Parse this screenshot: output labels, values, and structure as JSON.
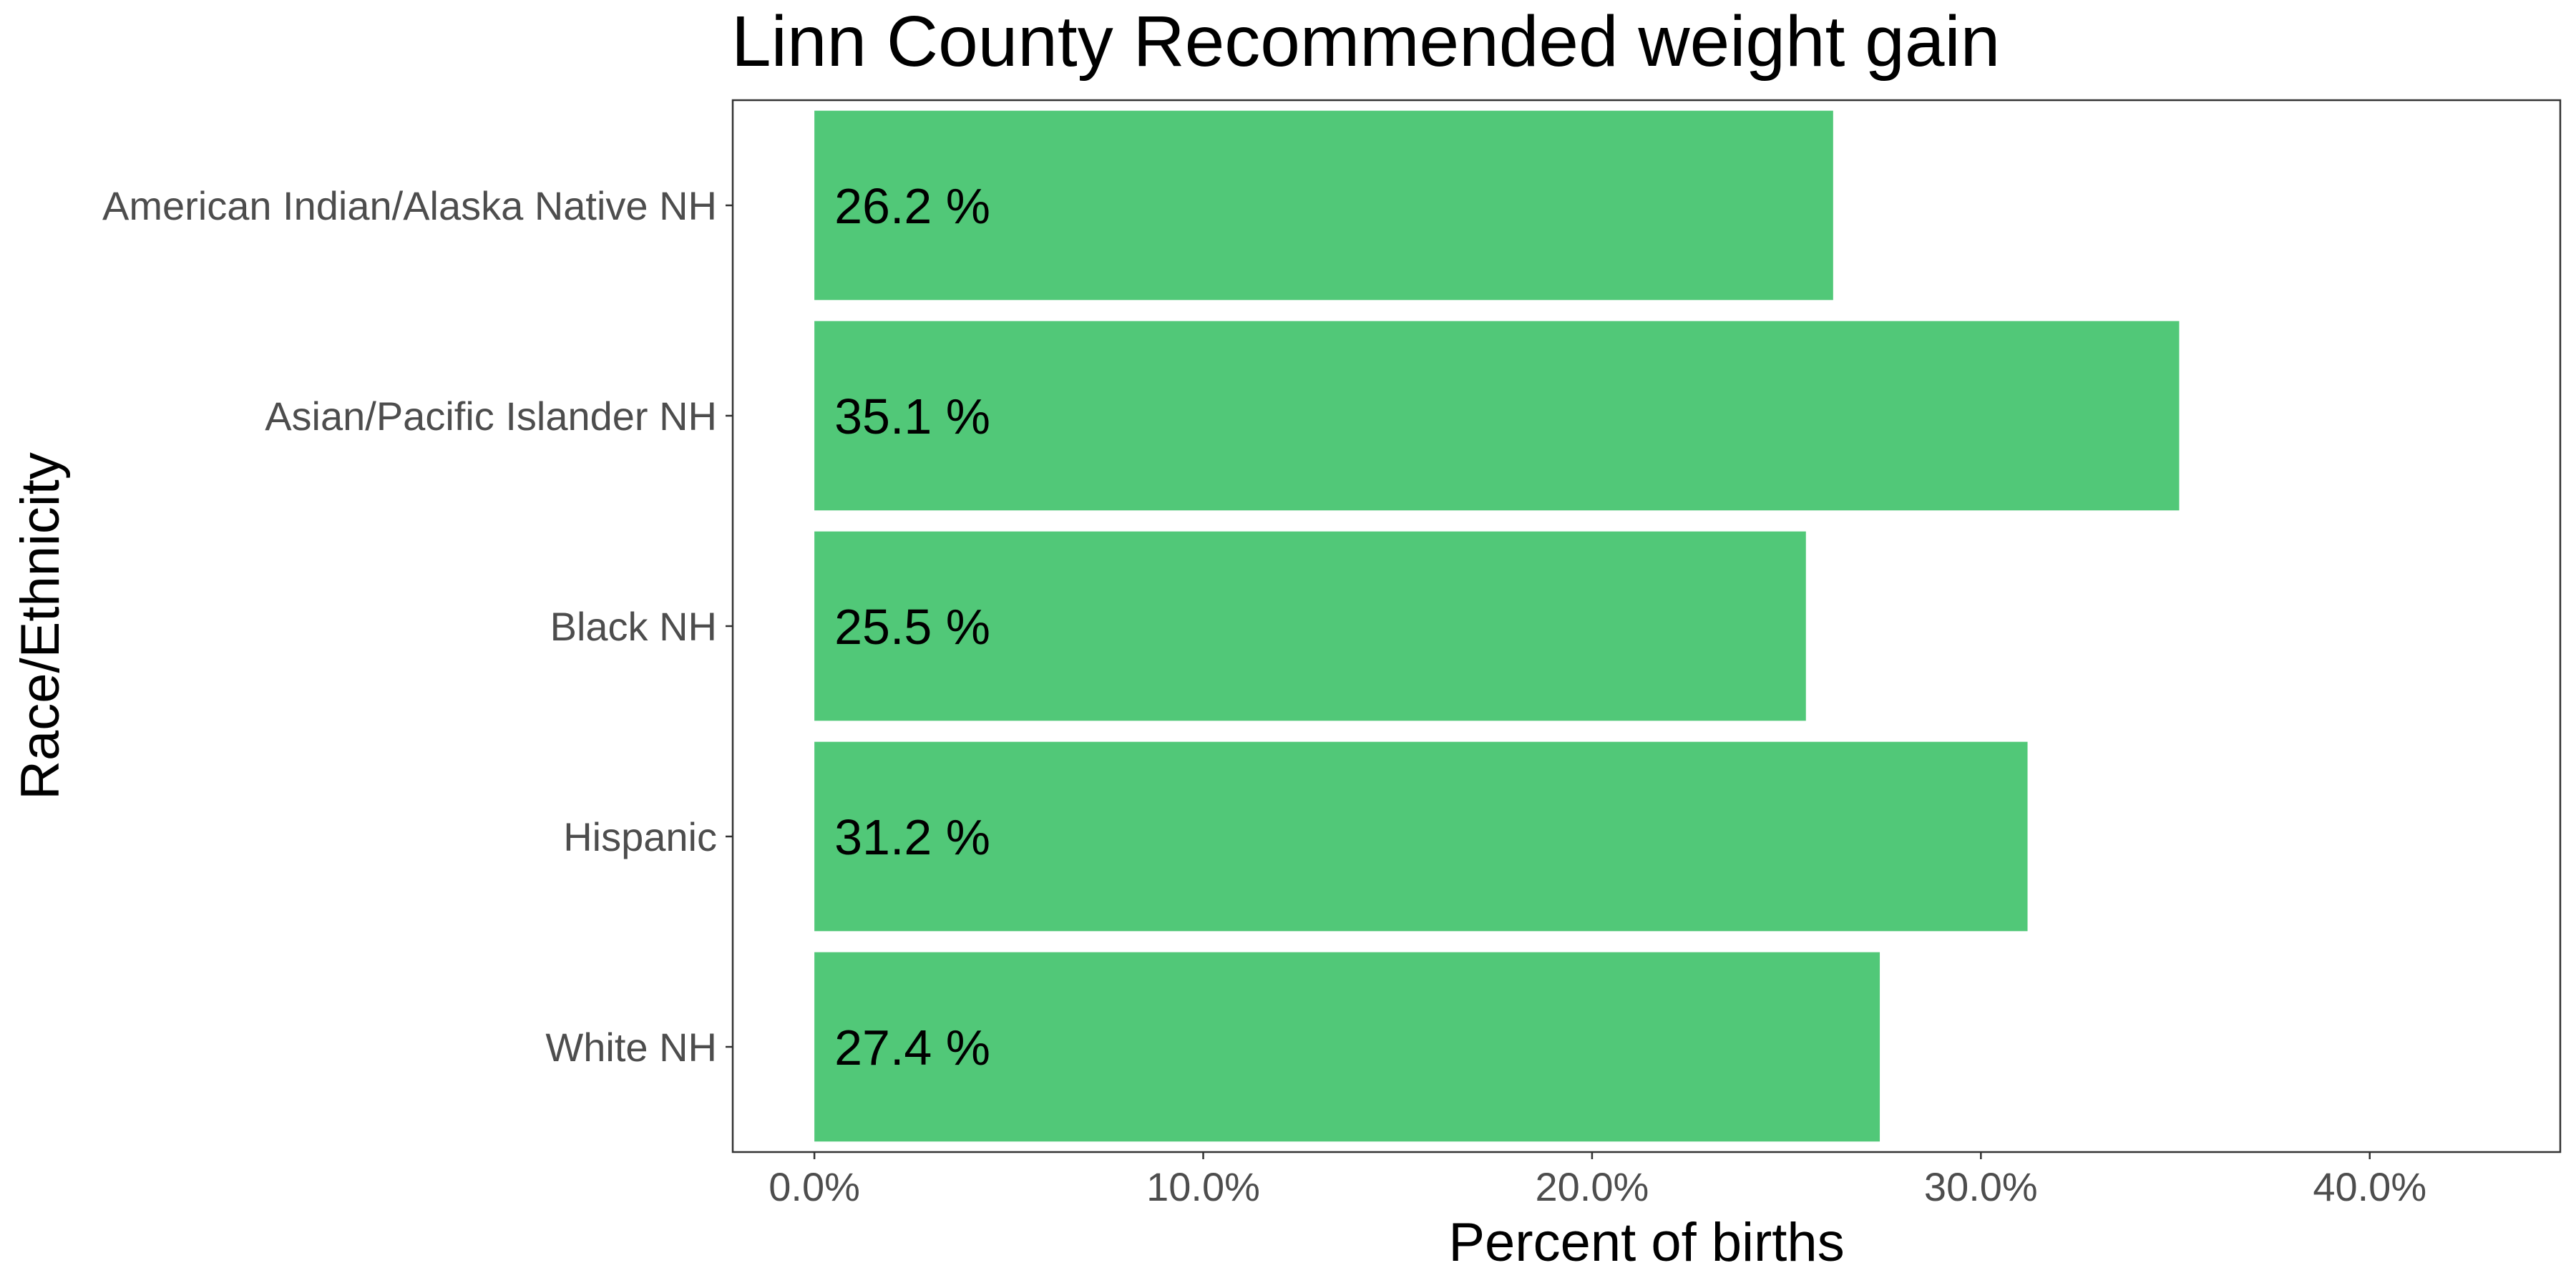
{
  "chart_data": {
    "type": "bar",
    "orientation": "horizontal",
    "title": "Linn County Recommended weight gain",
    "xlabel": "Percent of births",
    "ylabel": "Race/Ethnicity",
    "categories": [
      "American Indian/Alaska Native NH",
      "Asian/Pacific Islander NH",
      "Black NH",
      "Hispanic",
      "White NH"
    ],
    "values": [
      26.2,
      35.1,
      25.5,
      31.2,
      27.4
    ],
    "data_labels": [
      "26.2 %",
      "35.1 %",
      "25.5 %",
      "31.2 %",
      "27.4 %"
    ],
    "x_ticks": [
      0,
      10,
      20,
      30,
      40
    ],
    "x_tick_labels": [
      "0.0%",
      "10.0%",
      "20.0%",
      "30.0%",
      "40.0%"
    ],
    "xlim": [
      -2.1,
      44.9
    ],
    "grid": false,
    "legend": "none",
    "bar_color": "#51C878",
    "panel_border_color": "#333333"
  }
}
